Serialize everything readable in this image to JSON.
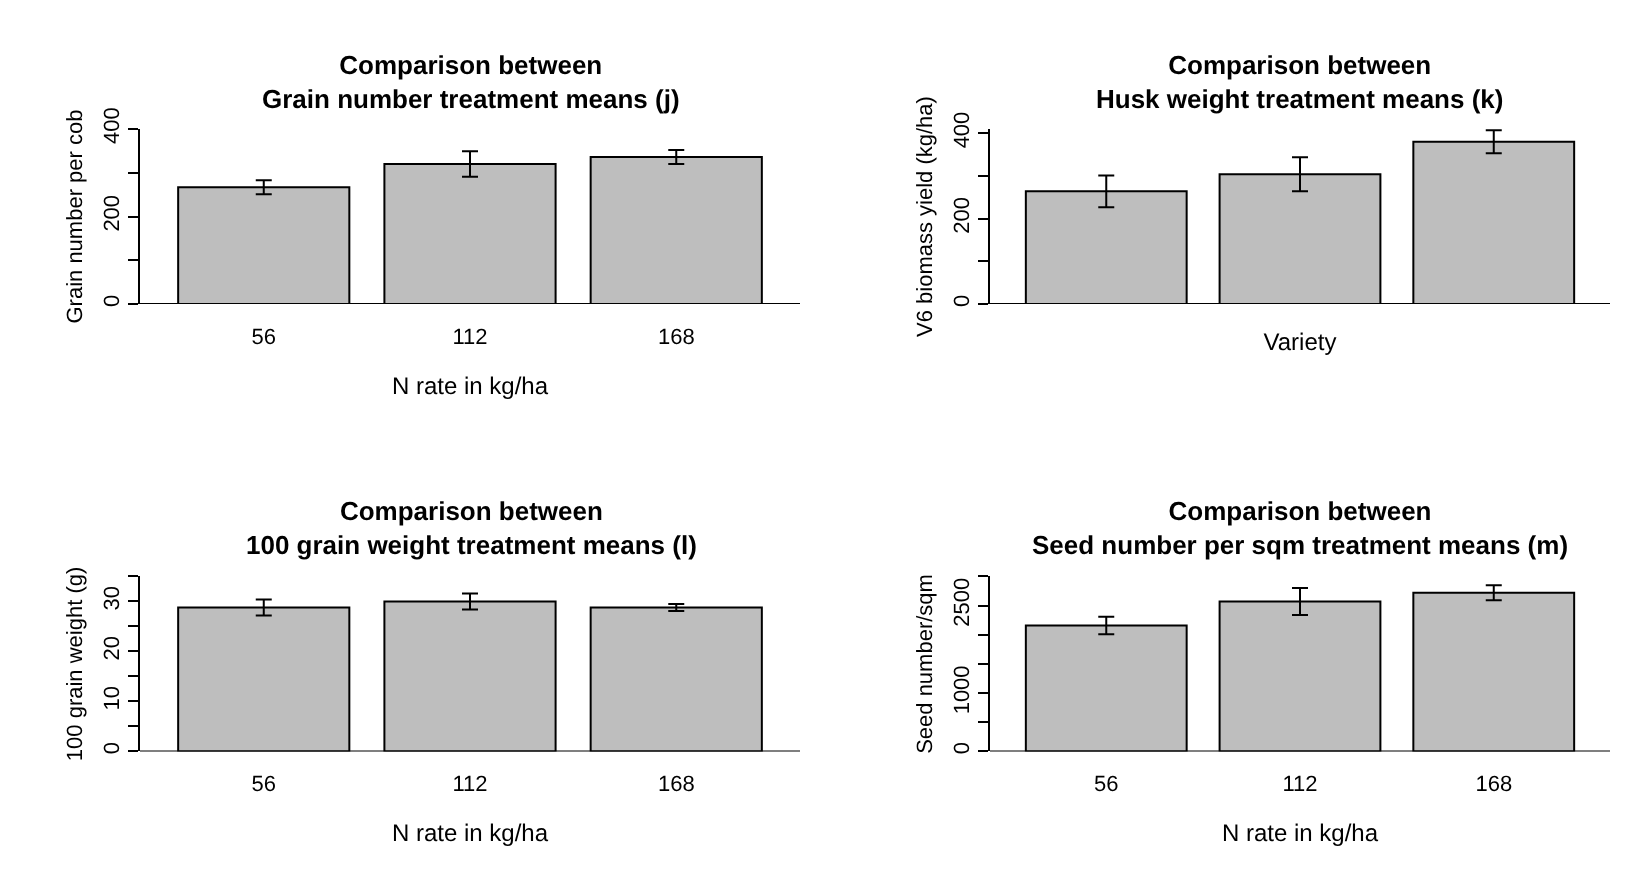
{
  "chart_data": [
    {
      "type": "bar",
      "title": "Comparison between\nGrain number treatment means (j)",
      "xlabel": "N rate in kg/ha",
      "ylabel": "Grain number per cob",
      "categories": [
        "56",
        "112",
        "168"
      ],
      "values": [
        267,
        320,
        336
      ],
      "errors": [
        16,
        29,
        16
      ],
      "color": "#bebebe",
      "ylim": [
        0,
        400
      ],
      "yticks": [
        0,
        {
          "value": 100,
          "label": null
        },
        200,
        {
          "value": 300,
          "label": null
        },
        400
      ]
    },
    {
      "type": "bar",
      "title": "Comparison between\nHusk weight treatment means (k)",
      "xlabel": "Variety",
      "ylabel": "V6 biomass yield (kg/ha)",
      "categories": [
        null,
        null,
        null
      ],
      "values": [
        264,
        304,
        380
      ],
      "errors": [
        37,
        40,
        27
      ],
      "color": "#bebebe",
      "ylim": [
        0,
        410
      ],
      "yticks": [
        0,
        {
          "value": 100,
          "label": null
        },
        200,
        {
          "value": 300,
          "label": null
        },
        400
      ]
    },
    {
      "type": "bar",
      "title": "Comparison between\n100 grain weight treatment means (l)",
      "xlabel": "N rate in kg/ha",
      "ylabel": "100 grain weight (g)",
      "categories": [
        "56",
        "112",
        "168"
      ],
      "values": [
        28.8,
        30.0,
        28.8
      ],
      "errors": [
        1.6,
        1.6,
        0.7
      ],
      "color": "#bebebe",
      "ylim": [
        0,
        35
      ],
      "yticks": [
        0,
        {
          "value": 5,
          "label": null
        },
        10,
        {
          "value": 15,
          "label": null
        },
        20,
        {
          "value": 25,
          "label": null
        },
        30,
        {
          "value": 35,
          "label": null
        }
      ]
    },
    {
      "type": "bar",
      "title": "Comparison between\nSeed number per sqm treatment means (m)",
      "xlabel": "N rate in kg/ha",
      "ylabel": "Seed number/sqm",
      "categories": [
        "56",
        "112",
        "168"
      ],
      "values": [
        2160,
        2570,
        2720
      ],
      "errors": [
        150,
        230,
        130
      ],
      "color": "#bebebe",
      "ylim": [
        0,
        3000
      ],
      "yticks": [
        0,
        {
          "value": 500,
          "label": null
        },
        1000,
        {
          "value": 1500,
          "label": null
        },
        {
          "value": 2000,
          "label": null
        },
        2500,
        {
          "value": 3000,
          "label": null
        }
      ]
    }
  ]
}
